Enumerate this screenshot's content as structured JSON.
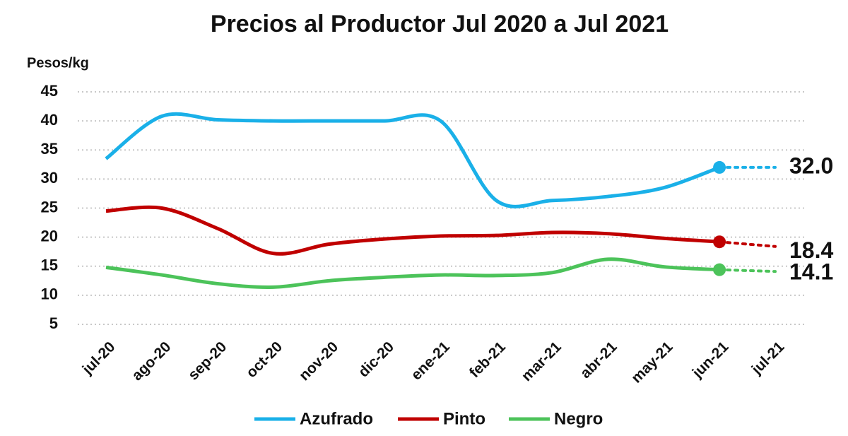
{
  "chart_data": {
    "type": "line",
    "title": "Precios al Productor Jul 2020 a Jul 2021",
    "y_axis_label": "Pesos/kg",
    "categories": [
      "jul-20",
      "ago-20",
      "sep-20",
      "oct-20",
      "nov-20",
      "dic-20",
      "ene-21",
      "feb-21",
      "mar-21",
      "abr-21",
      "may-21",
      "jun-21",
      "jul-21"
    ],
    "series": [
      {
        "name": "Azufrado",
        "color": "#1ab0e8",
        "values": [
          33.5,
          40.8,
          40.2,
          40,
          40,
          40,
          40,
          26.3,
          26.3,
          27,
          28.5,
          32,
          32
        ],
        "value_labels": [
          null,
          null,
          null,
          null,
          null,
          null,
          null,
          null,
          null,
          null,
          null,
          null,
          "32.0"
        ]
      },
      {
        "name": "Pinto",
        "color": "#c00000",
        "values": [
          24.5,
          25,
          21.5,
          17.2,
          18.8,
          19.7,
          20.2,
          20.3,
          20.8,
          20.6,
          19.8,
          19.2,
          18.4
        ],
        "value_labels": [
          null,
          null,
          null,
          null,
          null,
          null,
          null,
          null,
          null,
          null,
          null,
          null,
          "18.4"
        ]
      },
      {
        "name": "Negro",
        "color": "#4cc35a",
        "values": [
          14.8,
          13.5,
          12,
          11.4,
          12.5,
          13.1,
          13.5,
          13.4,
          13.9,
          16.2,
          14.9,
          14.4,
          14.1
        ],
        "value_labels": [
          null,
          null,
          null,
          null,
          null,
          null,
          null,
          null,
          null,
          null,
          null,
          null,
          "14.1"
        ]
      }
    ],
    "ylim": [
      5,
      45
    ],
    "yticks": [
      5,
      10,
      15,
      20,
      25,
      30,
      35,
      40,
      45
    ],
    "grid": true,
    "legend": "bottom"
  }
}
